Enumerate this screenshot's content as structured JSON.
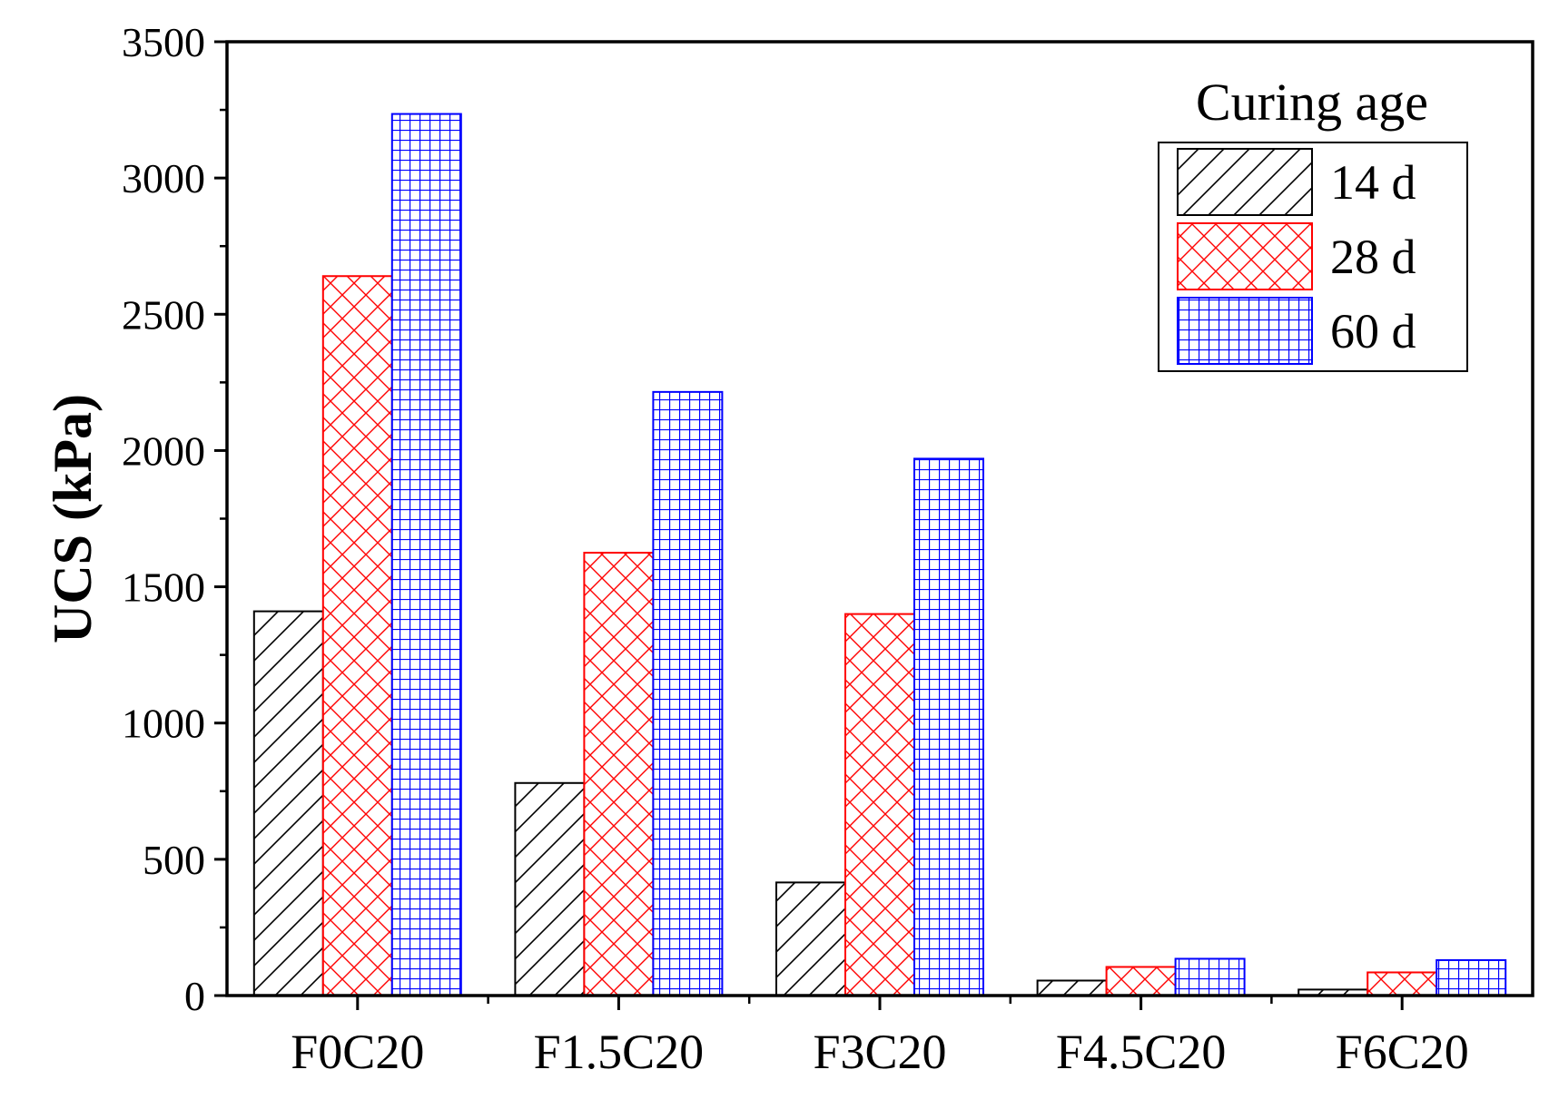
{
  "chart_data": {
    "type": "bar",
    "title": "",
    "xlabel": "",
    "ylabel": "UCS (kPa)",
    "ylim": [
      0,
      3500
    ],
    "yticks": [
      "0",
      "500",
      "1000",
      "1500",
      "2000",
      "2500",
      "3000",
      "3500"
    ],
    "ytick_values": [
      0,
      500,
      1000,
      1500,
      2000,
      2500,
      3000,
      3500
    ],
    "categories": [
      "F0C20",
      "F1.5C20",
      "F3C20",
      "F4.5C20",
      "F6C20"
    ],
    "legend_title": "Curing age",
    "legend_position": "top-right",
    "grid": false,
    "series": [
      {
        "name": "14 d",
        "values": [
          1410,
          780,
          415,
          55,
          22
        ],
        "color": "#000000",
        "pattern": "diagonal-hatch"
      },
      {
        "name": "28 d",
        "values": [
          2640,
          1625,
          1400,
          105,
          85
        ],
        "color": "#ff0000",
        "pattern": "crosshatch"
      },
      {
        "name": "60 d",
        "values": [
          3235,
          2215,
          1970,
          135,
          130
        ],
        "color": "#0000ff",
        "pattern": "grid"
      }
    ]
  }
}
